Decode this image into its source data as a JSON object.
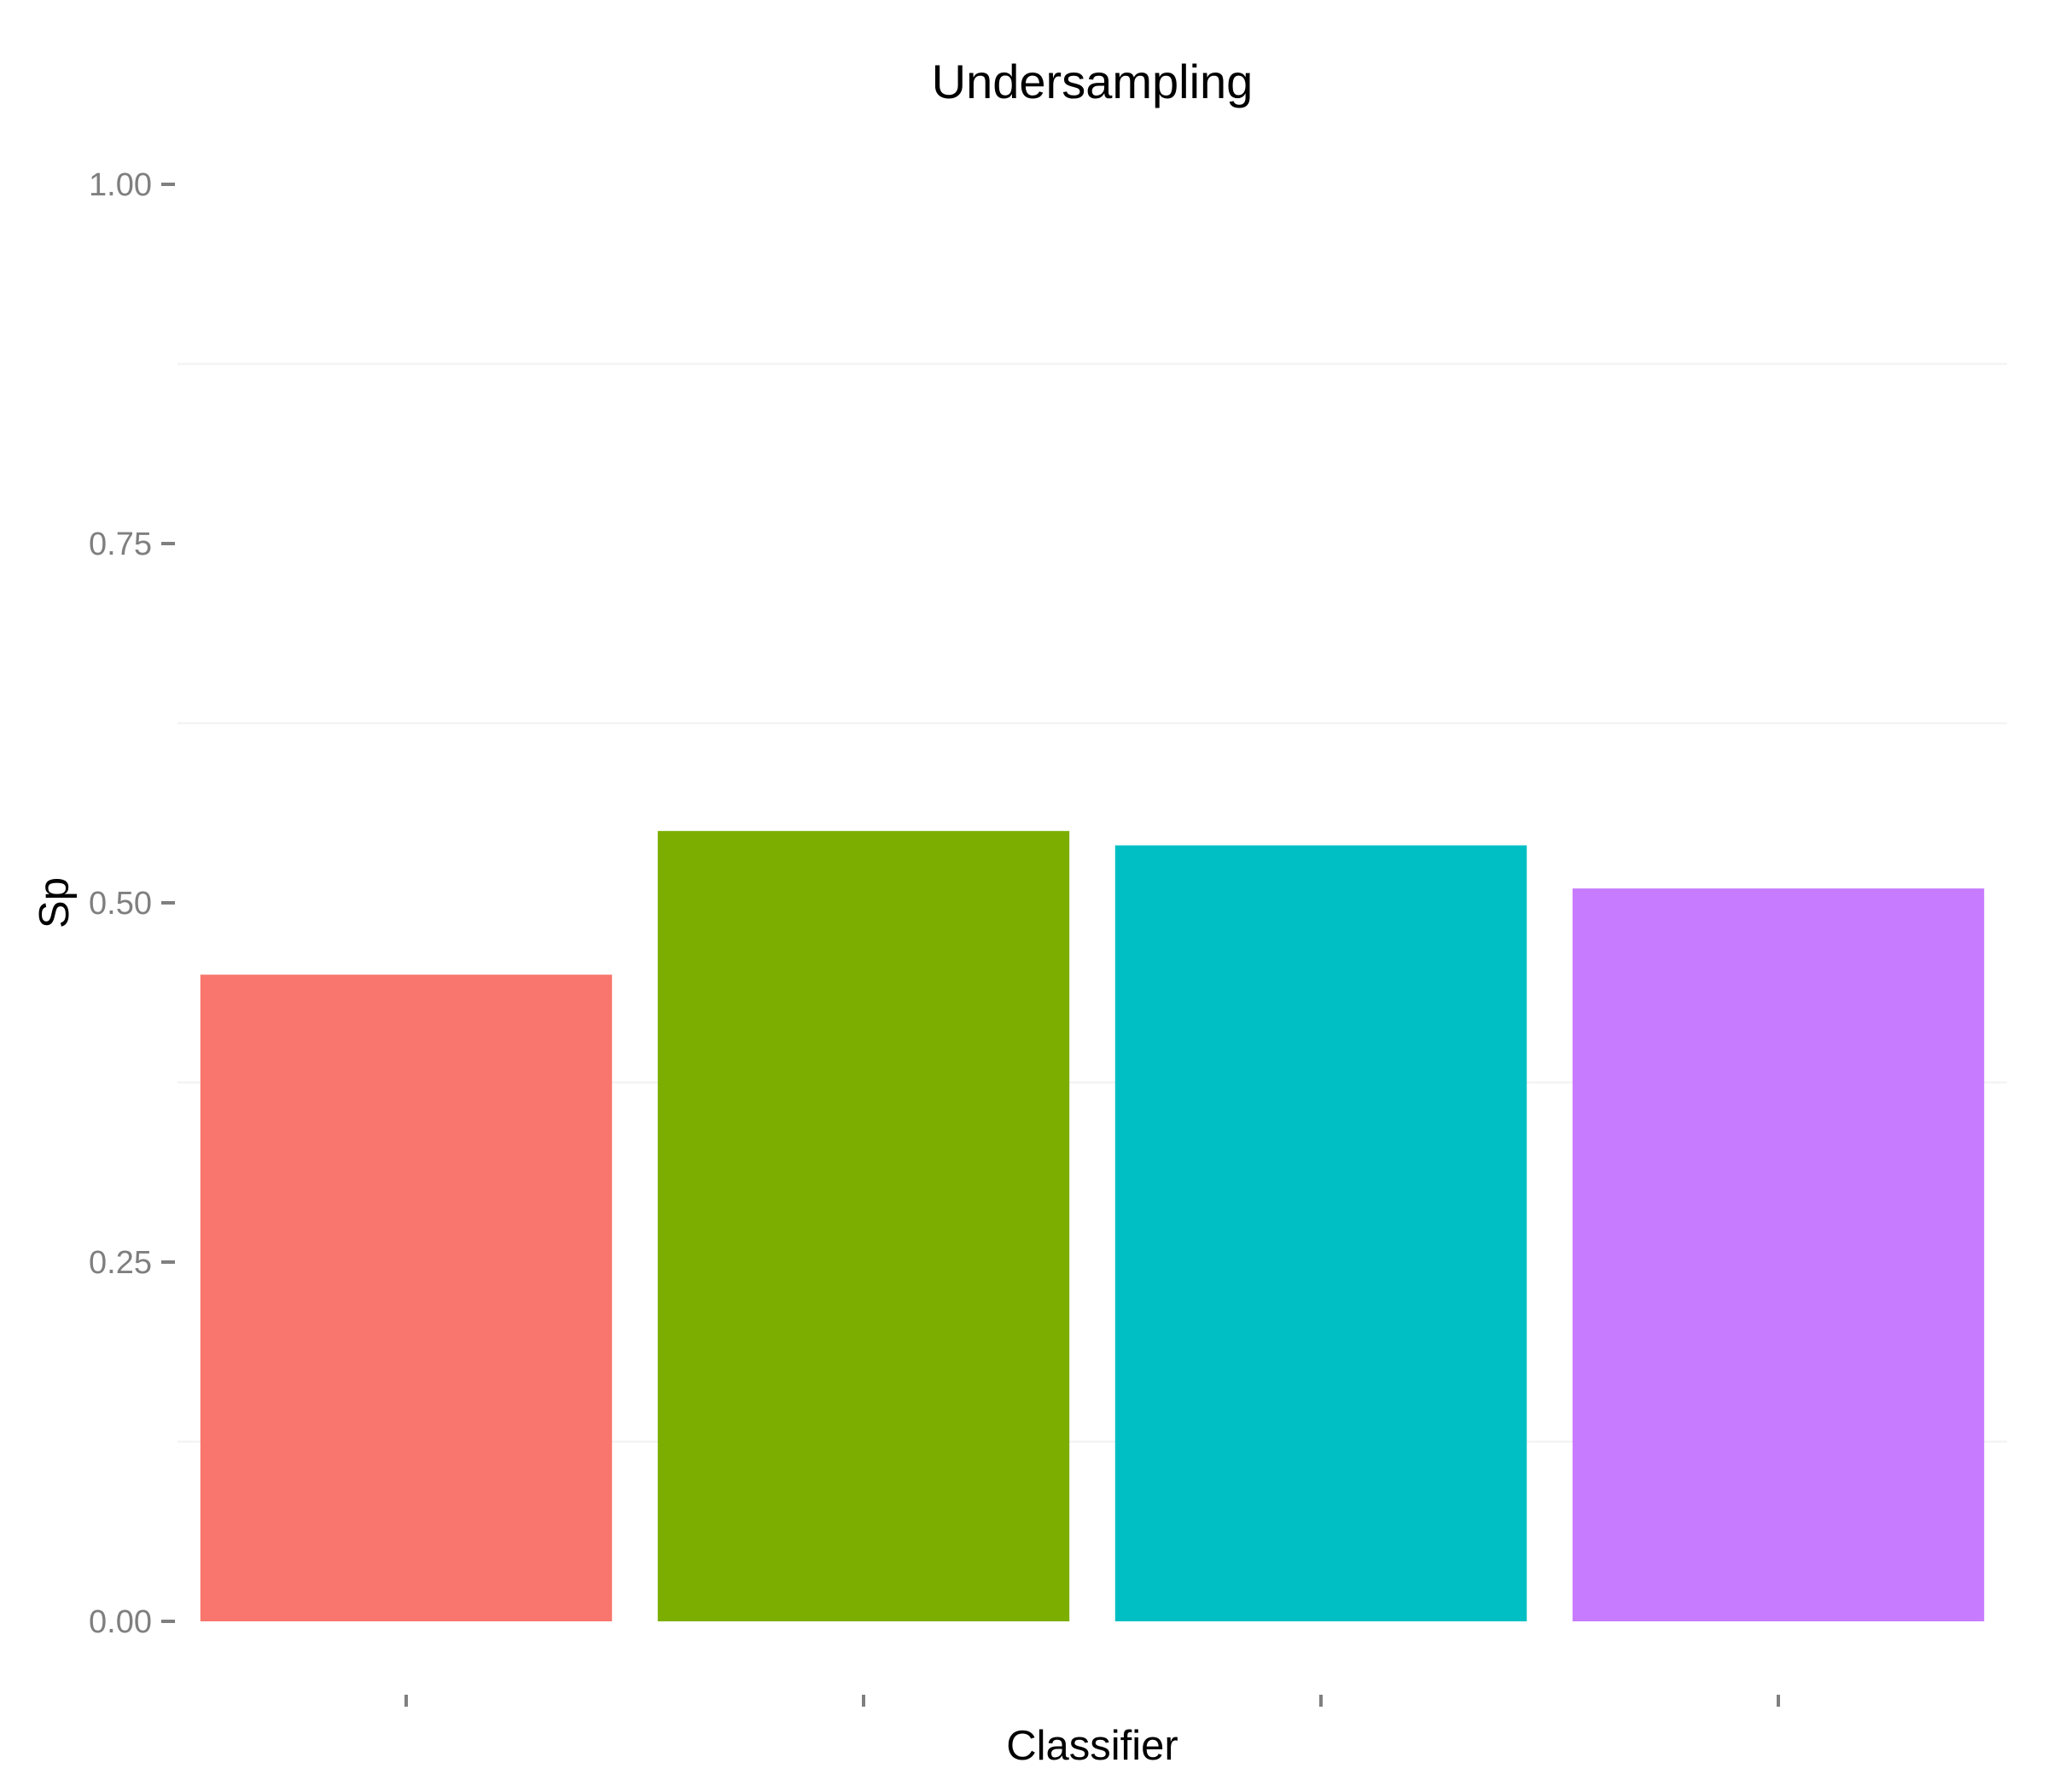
{
  "chart_data": {
    "type": "bar",
    "title": "Undersampling",
    "xlabel": "Classifier",
    "ylabel": "Sp",
    "categories": [
      "",
      "",
      "",
      ""
    ],
    "values": [
      0.45,
      0.55,
      0.54,
      0.51
    ],
    "colors": [
      "#F8766D",
      "#7CAE00",
      "#00BFC4",
      "#C77CFF"
    ],
    "ylim": [
      0,
      1
    ],
    "yticks": [
      0.0,
      0.25,
      0.5,
      0.75,
      1.0
    ],
    "ytick_labels": [
      "0.00",
      "0.25",
      "0.50",
      "0.75",
      "1.00"
    ],
    "grid": true,
    "legend": false
  }
}
